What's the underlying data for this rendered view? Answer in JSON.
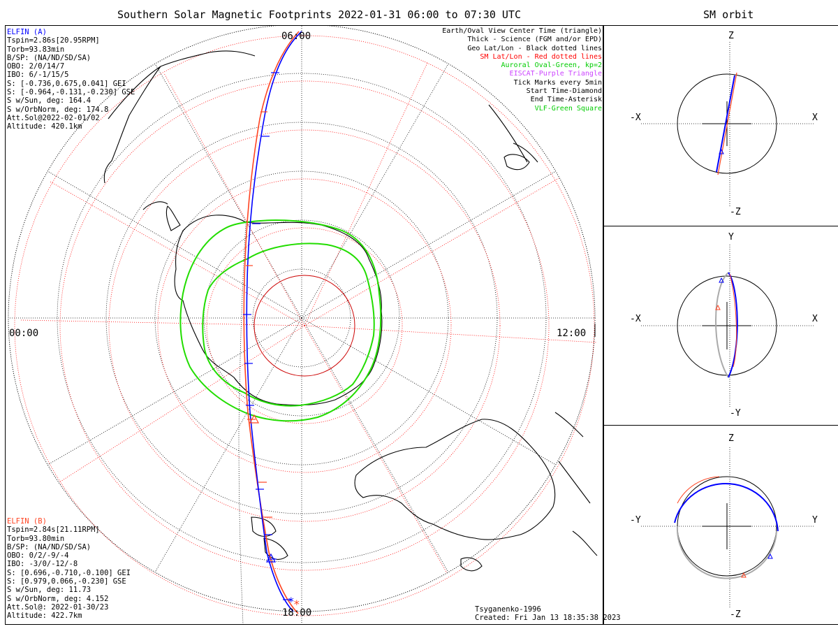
{
  "main_title": "Southern Solar Magnetic Footprints 2022-01-31 06:00 to 07:30 UTC",
  "orbit_title": "SM orbit",
  "map": {
    "time_labels": {
      "top": "06:00",
      "bottom": "18:00",
      "left": "00:00",
      "right": "12:00"
    }
  },
  "elfin_a": {
    "header": "ELFIN (A)",
    "lines": [
      "Tspin=2.86s[20.95RPM]",
      "Torb=93.83min",
      "B/SP: (NA/ND/SD/SA)",
      "OBO: 2/0/14/7",
      "IBO: 6/-1/15/5",
      "S: [-0.736,0.675,0.041] GEI",
      "S: [-0.964,-0.131,-0.230] GSE",
      "S w/Sun, deg: 164.4",
      "S w/OrbNorm, deg: 174.8",
      "Att.Sol@2022-02-01/02",
      "Altitude: 420.1km"
    ]
  },
  "elfin_b": {
    "header": "ELFIN (B)",
    "lines": [
      "Tspin=2.84s[21.11RPM]",
      "Torb=93.80min",
      "B/SP: (NA/ND/SD/SA)",
      "OBO: 0/2/-9/-4",
      "IBO: -3/0/-12/-8",
      "S: [0.696,-0.710,-0.100] GEI",
      "S: [0.979,0.066,-0.230] GSE",
      "S w/Sun, deg: 11.73",
      "S w/OrbNorm, deg: 4.152",
      "Att.Sol@: 2022-01-30/23",
      "Altitude: 422.7km"
    ]
  },
  "legend": [
    {
      "text": "Earth/Oval View Center Time (triangle)",
      "color": "#000000"
    },
    {
      "text": "Thick - Science (FGM and/or EPD)",
      "color": "#000000"
    },
    {
      "text": "Geo Lat/Lon - Black dotted lines",
      "color": "#000000"
    },
    {
      "text": "SM Lat/Lon - Red dotted lines",
      "color": "#ff0000"
    },
    {
      "text": "Auroral Oval-Green, kp=2",
      "color": "#00cc00"
    },
    {
      "text": "EISCAT-Purple Triangle",
      "color": "#cc44ff"
    },
    {
      "text": "Tick Marks every 5min",
      "color": "#000000"
    },
    {
      "text": "Start Time-Diamond",
      "color": "#000000"
    },
    {
      "text": "End Time-Asterisk",
      "color": "#000000"
    },
    {
      "text": "VLF-Green Square",
      "color": "#00cc00"
    }
  ],
  "credit": {
    "line1": "Tsyganenko-1996",
    "line2": "Created: Fri Jan 13 18:35:38 2023"
  },
  "orbit_panels": [
    {
      "top": "Z",
      "bottom": "-Z",
      "left": "-X",
      "right": "X"
    },
    {
      "top": "Y",
      "bottom": "-Y",
      "left": "-X",
      "right": "X"
    },
    {
      "top": "Z",
      "bottom": "-Z",
      "left": "-Y",
      "right": "Y"
    }
  ],
  "colors": {
    "elfin_a": "#0000ff",
    "elfin_b": "#ff4422",
    "oval": "#22dd00",
    "sm_grid": "#ff0000",
    "shadow": "#aaaaaa"
  }
}
